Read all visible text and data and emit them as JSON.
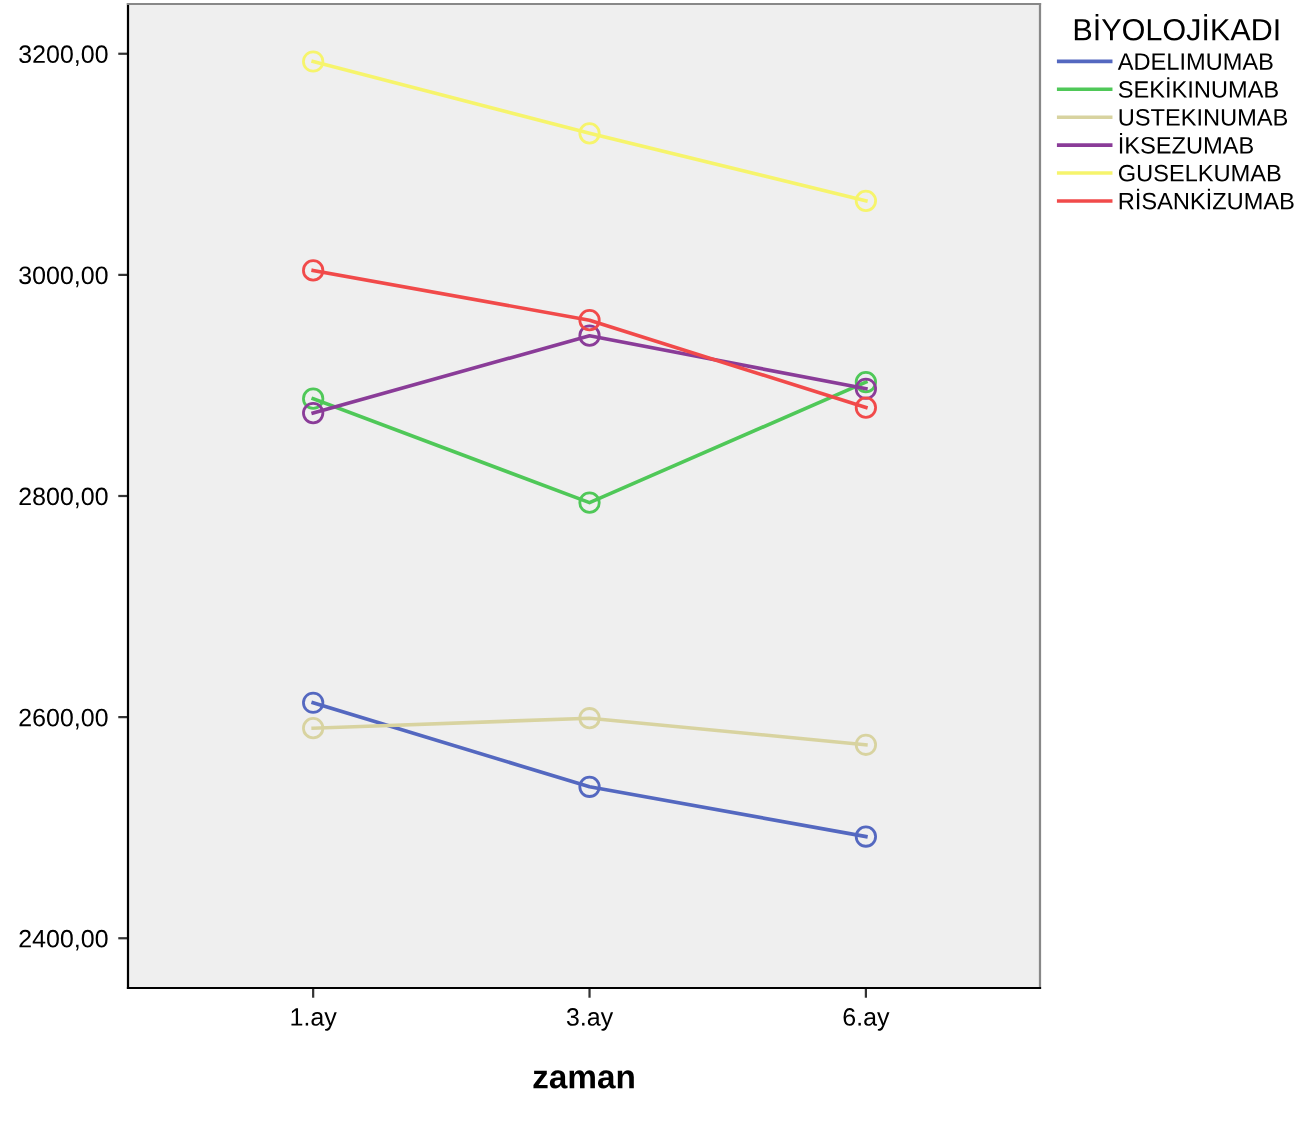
{
  "chart_data": {
    "type": "line",
    "xlabel": "zaman",
    "legend_title": "BİYOLOJİKADI",
    "categories": [
      "1.ay",
      "3.ay",
      "6.ay"
    ],
    "series": [
      {
        "name": "ADELIMUMAB",
        "color": "#5468c0",
        "values": [
          2613,
          2537,
          2492
        ]
      },
      {
        "name": "SEKİKINUMAB",
        "color": "#4fc858",
        "values": [
          2888,
          2794,
          2903
        ]
      },
      {
        "name": "USTEKINUMAB",
        "color": "#d8d3a0",
        "values": [
          2590,
          2599,
          2575
        ]
      },
      {
        "name": "İKSEZUMAB",
        "color": "#8a3c98",
        "values": [
          2875,
          2945,
          2897
        ]
      },
      {
        "name": "GUSELKUMAB",
        "color": "#f6f46c",
        "values": [
          3193,
          3128,
          3067
        ]
      },
      {
        "name": "RİSANKİZUMAB",
        "color": "#f14a4a",
        "values": [
          3004,
          2959,
          2880
        ]
      }
    ],
    "ylim": [
      2355,
      3245
    ],
    "yticks": [
      {
        "value": 2400,
        "label": "2400,00"
      },
      {
        "value": 2600,
        "label": "2600,00"
      },
      {
        "value": 2800,
        "label": "2800,00"
      },
      {
        "value": 3000,
        "label": "3000,00"
      },
      {
        "value": 3200,
        "label": "3200,00"
      }
    ],
    "marker": "circle",
    "line_style": "solid",
    "grid": false,
    "legend": "right"
  }
}
